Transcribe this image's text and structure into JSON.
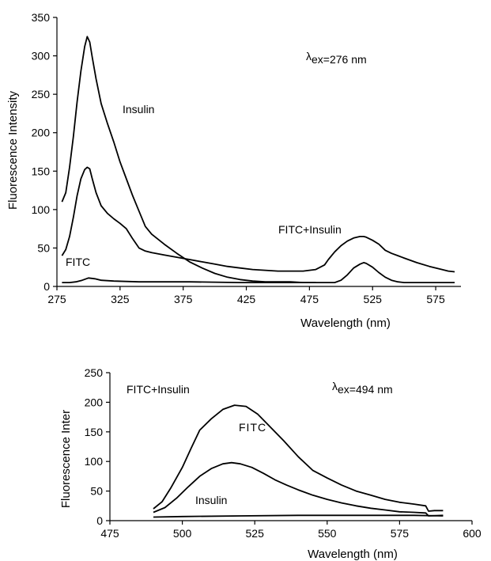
{
  "chart_data": [
    {
      "type": "line",
      "xlabel": "Wavelength (nm)",
      "ylabel": "Fluorescence Intensity",
      "xlim": [
        275,
        595
      ],
      "ylim": [
        0,
        350
      ],
      "xticks": [
        275,
        325,
        375,
        425,
        475,
        525,
        575
      ],
      "yticks": [
        0,
        50,
        100,
        150,
        200,
        250,
        300,
        350
      ],
      "grid": false,
      "annotation_prefix": "λ",
      "annotation_text": "ex=276 nm",
      "series": [
        {
          "name": "Insulin",
          "x": [
            279,
            282,
            285,
            288,
            291,
            294,
            297,
            299,
            301,
            303,
            306,
            310,
            315,
            320,
            325,
            330,
            335,
            340,
            345,
            350,
            360,
            370,
            380,
            390,
            400,
            410,
            420,
            430,
            440,
            450,
            460,
            470,
            477,
            480
          ],
          "y": [
            110,
            122,
            155,
            195,
            240,
            280,
            312,
            325,
            318,
            298,
            270,
            238,
            212,
            188,
            162,
            140,
            118,
            98,
            78,
            68,
            55,
            43,
            32,
            24,
            17,
            12,
            9,
            7,
            6,
            6,
            6,
            5,
            5,
            5
          ]
        },
        {
          "name": "FITC+Insulin",
          "x": [
            279,
            282,
            285,
            288,
            291,
            294,
            297,
            299,
            301,
            303,
            306,
            310,
            315,
            320,
            325,
            330,
            335,
            340,
            345,
            350,
            360,
            370,
            380,
            390,
            400,
            410,
            420,
            430,
            440,
            450,
            460,
            470,
            480,
            487,
            490,
            495,
            500,
            505,
            510,
            515,
            518,
            520,
            525,
            530,
            535,
            540,
            545,
            550,
            560,
            570,
            580,
            585,
            590
          ],
          "y": [
            40,
            48,
            65,
            90,
            118,
            140,
            152,
            155,
            153,
            140,
            122,
            105,
            95,
            88,
            82,
            75,
            62,
            50,
            46,
            44,
            41,
            38,
            35,
            32,
            29,
            26,
            24,
            22,
            21,
            20,
            20,
            20,
            22,
            28,
            35,
            45,
            53,
            59,
            63,
            65,
            65,
            64,
            60,
            55,
            47,
            43,
            40,
            37,
            31,
            26,
            22,
            20,
            19
          ]
        },
        {
          "name": "FITC",
          "x": [
            279,
            285,
            290,
            295,
            300,
            305,
            310,
            320,
            340,
            380,
            420,
            460,
            495,
            500,
            505,
            510,
            515,
            518,
            520,
            525,
            530,
            535,
            540,
            545,
            550,
            560,
            570,
            580,
            590
          ],
          "y": [
            5,
            5,
            6,
            8,
            11,
            10,
            8,
            7,
            6,
            6,
            5,
            5,
            5,
            8,
            15,
            24,
            29,
            31,
            30,
            25,
            18,
            12,
            8,
            6,
            5,
            5,
            5,
            5,
            5
          ]
        }
      ]
    },
    {
      "type": "line",
      "xlabel": "Wavelength (nm)",
      "ylabel": "Fluorescence Inter",
      "xlim": [
        475,
        600
      ],
      "ylim": [
        0,
        250
      ],
      "xticks": [
        475,
        500,
        525,
        550,
        575,
        600
      ],
      "yticks": [
        0,
        50,
        100,
        150,
        200,
        250
      ],
      "grid": false,
      "annotation_prefix": "λ",
      "annotation_text": "ex=494 nm",
      "series": [
        {
          "name": "FITC+Insulin",
          "x": [
            490,
            493,
            496,
            500,
            503,
            506,
            510,
            514,
            518,
            522,
            526,
            530,
            535,
            540,
            545,
            550,
            555,
            560,
            565,
            570,
            575,
            580,
            584,
            585,
            587,
            590
          ],
          "y": [
            20,
            32,
            55,
            90,
            122,
            153,
            172,
            188,
            195,
            193,
            180,
            160,
            135,
            108,
            85,
            72,
            60,
            50,
            43,
            36,
            31,
            28,
            25,
            16,
            17,
            17
          ]
        },
        {
          "name": "FITC",
          "x": [
            490,
            494,
            498,
            502,
            506,
            510,
            514,
            517,
            520,
            524,
            528,
            532,
            536,
            540,
            545,
            550,
            555,
            560,
            565,
            570,
            575,
            580,
            584,
            585,
            590
          ],
          "y": [
            14,
            22,
            38,
            57,
            75,
            88,
            96,
            98,
            96,
            90,
            80,
            69,
            60,
            52,
            43,
            36,
            30,
            25,
            21,
            18,
            15,
            14,
            13,
            8,
            9
          ]
        },
        {
          "name": "Insulin",
          "x": [
            490,
            500,
            520,
            540,
            560,
            580,
            590
          ],
          "y": [
            6,
            7,
            8,
            9,
            9,
            9,
            8
          ]
        }
      ]
    }
  ]
}
